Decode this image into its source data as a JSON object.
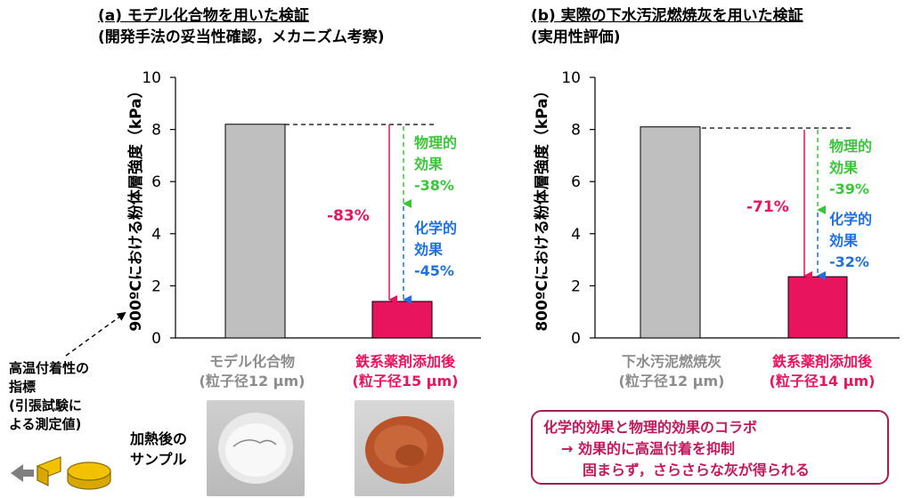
{
  "panel_a": {
    "title": "(a) モデル化合物を用いた検証",
    "subtitle": "(開発手法の妥当性確認，メカニズム考察)",
    "ylabel": "900ºCにおける粉体層強度（kPa）",
    "effects": {
      "total": "-83%",
      "physical": [
        "物理的",
        "効果",
        "-38%"
      ],
      "chemical": [
        "化学的",
        "効果",
        "-45%"
      ]
    },
    "categories": [
      {
        "line1": "モデル化合物",
        "line2": "(粒子径12 μm)"
      },
      {
        "line1": "鉄系薬剤添加後",
        "line2": "(粒子径15 μm)"
      }
    ]
  },
  "panel_b": {
    "title": "(b) 実際の下水汚泥燃焼灰を用いた検証",
    "subtitle": "(実用性評価)",
    "ylabel": "800ºCにおける粉体層強度（kPa）",
    "effects": {
      "total": "-71%",
      "physical": [
        "物理的",
        "効果",
        "-39%"
      ],
      "chemical": [
        "化学的",
        "効果",
        "-32%"
      ]
    },
    "categories": [
      {
        "line1": "下水汚泥燃焼灰",
        "line2": "(粒子径12 μm)"
      },
      {
        "line1": "鉄系薬剤添加後",
        "line2": "(粒子径14 μm)"
      }
    ]
  },
  "indicator_note": [
    "高温付着性の",
    "指標",
    "(引張試験に",
    "よる測定値)"
  ],
  "heated_label": [
    "加熱後の",
    "サンプル"
  ],
  "summary": [
    "化学的効果と物理的効果のコラボ",
    "→ 効果的に高温付着を抑制",
    "固まらず，さらさらな灰が得られる"
  ],
  "colors": {
    "gray_bar": "#bfbfbf",
    "pink": "#e8145e",
    "green": "#3cc43c",
    "blue": "#1f6fe0",
    "gray_text": "#8c8c8c"
  },
  "chart_data": [
    {
      "type": "bar",
      "categories": [
        "モデル化合物",
        "鉄系薬剤添加後"
      ],
      "values": [
        8.2,
        1.4
      ],
      "ylim": [
        0,
        10
      ],
      "yticks": [
        0,
        2,
        4,
        6,
        8,
        10
      ],
      "ylabel": "900ºCにおける粉体層強度（kPa）"
    },
    {
      "type": "bar",
      "categories": [
        "下水汚泥燃焼灰",
        "鉄系薬剤添加後"
      ],
      "values": [
        8.1,
        2.35
      ],
      "ylim": [
        0,
        10
      ],
      "yticks": [
        0,
        2,
        4,
        6,
        8,
        10
      ],
      "ylabel": "800ºCにおける粉体層強度（kPa）"
    }
  ]
}
